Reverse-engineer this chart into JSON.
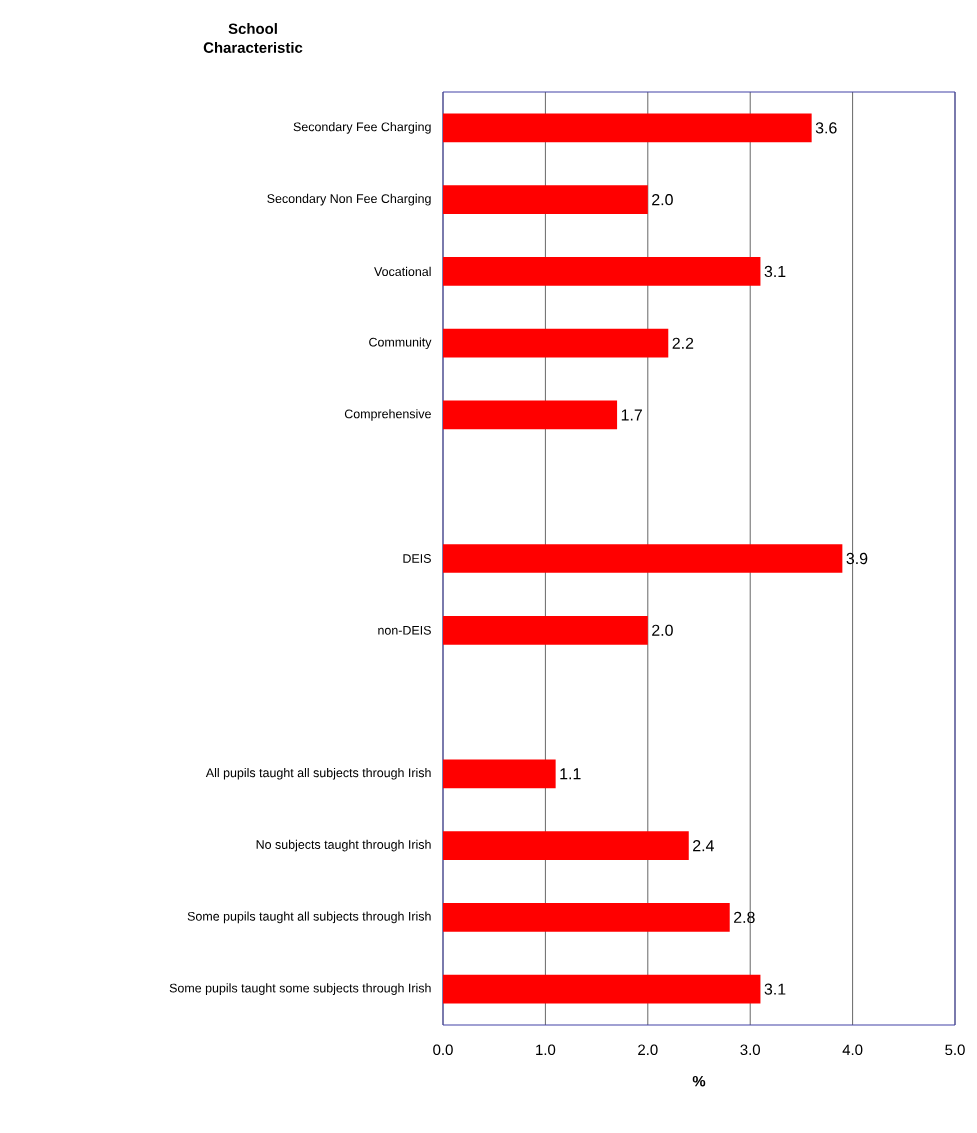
{
  "chart_data": {
    "type": "bar",
    "orientation": "horizontal",
    "title": "School Characteristic",
    "xlabel": "%",
    "categories": [
      "Secondary Fee Charging",
      "Secondary Non Fee Charging",
      "Vocational",
      "Community",
      "Comprehensive",
      null,
      "DEIS",
      "non-DEIS",
      null,
      "All pupils taught all subjects through Irish",
      "No subjects taught through Irish",
      "Some pupils taught all subjects through Irish",
      "Some pupils taught some subjects through Irish"
    ],
    "values": [
      3.6,
      2.0,
      3.1,
      2.2,
      1.7,
      null,
      3.9,
      2.0,
      null,
      1.1,
      2.4,
      2.8,
      3.1
    ],
    "value_labels": [
      "3.6",
      "2.0",
      "3.1",
      "2.2",
      "1.7",
      null,
      "3.9",
      "2.0",
      null,
      "1.1",
      "2.4",
      "2.8",
      "3.1"
    ],
    "color": "#ff0000",
    "grid": "x",
    "xlim": [
      0,
      5
    ],
    "xticks": [
      {
        "value": 0,
        "label": "0.0"
      },
      {
        "value": 1,
        "label": "1.0"
      },
      {
        "value": 2,
        "label": "2.0"
      },
      {
        "value": 3,
        "label": "3.0"
      },
      {
        "value": 4,
        "label": "4.0"
      },
      {
        "value": 5,
        "label": "5.0"
      }
    ]
  }
}
